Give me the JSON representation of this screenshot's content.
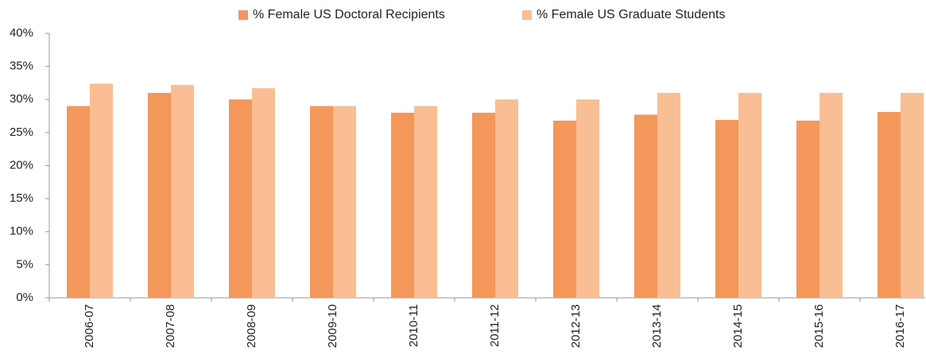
{
  "chart_data": {
    "type": "bar",
    "categories": [
      "2006-07",
      "2007-08",
      "2008-09",
      "2009-10",
      "2010-11",
      "2011-12",
      "2012-13",
      "2013-14",
      "2014-15",
      "2015-16",
      "2016-17"
    ],
    "series": [
      {
        "name": "% Female US Doctoral Recipients",
        "color": "#f4975a",
        "values": [
          29,
          31,
          30,
          29,
          28,
          28,
          26.8,
          27.7,
          26.9,
          26.8,
          28.1
        ]
      },
      {
        "name": "% Female US Graduate Students",
        "color": "#f9be93",
        "values": [
          32.4,
          32.2,
          31.7,
          29,
          29,
          30,
          30,
          31,
          31,
          31,
          31
        ]
      }
    ],
    "ylim": [
      0,
      40
    ],
    "yticks": [
      {
        "value": 0,
        "label": "0%"
      },
      {
        "value": 5,
        "label": "5%"
      },
      {
        "value": 10,
        "label": "10%"
      },
      {
        "value": 15,
        "label": "15%"
      },
      {
        "value": 20,
        "label": "20%"
      },
      {
        "value": 25,
        "label": "25%"
      },
      {
        "value": 30,
        "label": "30%"
      },
      {
        "value": 35,
        "label": "35%"
      },
      {
        "value": 40,
        "label": "40%"
      }
    ],
    "legend": "top"
  }
}
